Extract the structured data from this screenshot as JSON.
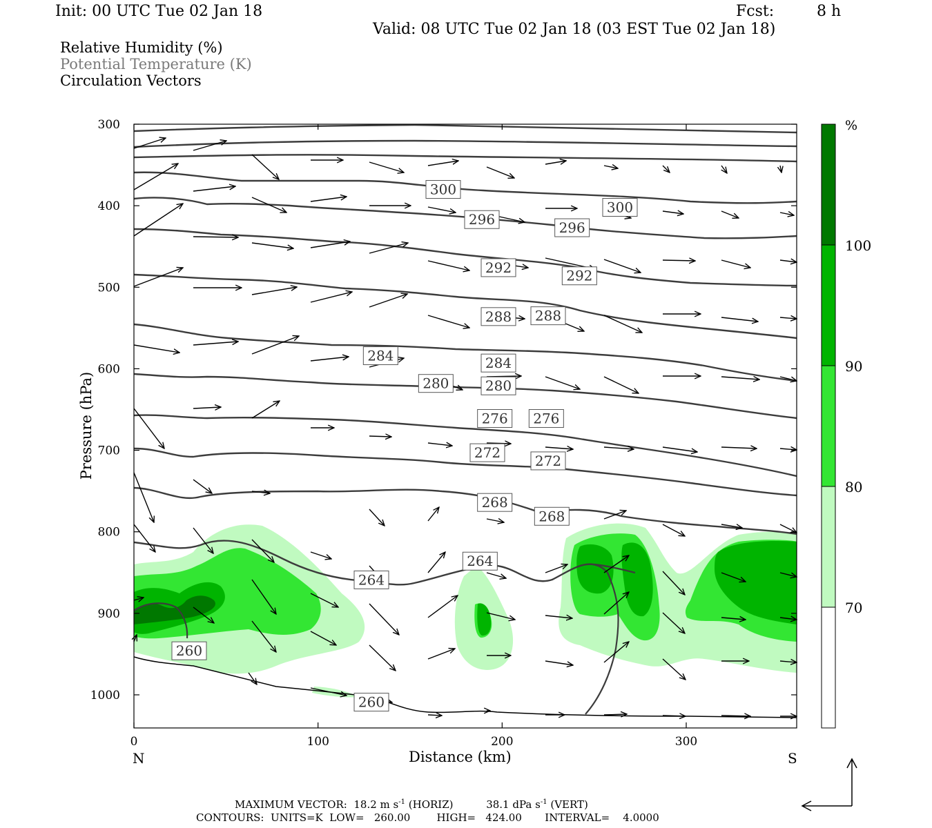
{
  "header": {
    "init": "Init: 00 UTC Tue 02 Jan 18",
    "fcst_label": "Fcst:",
    "fcst_value": "8 h",
    "valid": "Valid: 08 UTC Tue 02 Jan 18 (03 EST Tue 02 Jan 18)"
  },
  "fields": [
    "Relative Humidity (%)",
    "Potential Temperature (K)",
    "Circulation Vectors"
  ],
  "footer": {
    "line1_prefix": "MAXIMUM VECTOR:",
    "horiz": "18.2 m s",
    "horiz_sup": "-1",
    "horiz_suffix": "(HORIZ)",
    "vert": "38.1 dPa s",
    "vert_sup": "-1",
    "vert_suffix": "(VERT)",
    "line2": "CONTOURS:  UNITS=K  LOW=   260.00        HIGH=   424.00       INTERVAL=    4.0000"
  },
  "colors": {
    "rh_70": "#c0fac0",
    "rh_80": "#33e633",
    "rh_90": "#00b400",
    "rh_100": "#007800",
    "theta_line": "#3c3c3c"
  },
  "chart_data": {
    "type": "cross-section",
    "xlabel": "Distance (km)",
    "ylabel": "Pressure (hPa)",
    "xlim": [
      0,
      360
    ],
    "ylim": [
      1040,
      300
    ],
    "x_ticks": [
      0,
      100,
      200,
      300
    ],
    "y_ticks": [
      300,
      400,
      500,
      600,
      700,
      800,
      900,
      1000
    ],
    "x_end_labels": {
      "left": "N",
      "right": "S"
    },
    "colorbar": {
      "unit": "%",
      "levels": [
        70,
        80,
        90,
        100
      ],
      "labels": [
        "100",
        "90",
        "80",
        "70"
      ]
    },
    "theta_labels": [
      {
        "x": 168,
        "p": 380,
        "v": "300"
      },
      {
        "x": 264,
        "p": 402,
        "v": "300"
      },
      {
        "x": 189,
        "p": 417,
        "v": "296"
      },
      {
        "x": 238,
        "p": 427,
        "v": "296"
      },
      {
        "x": 198,
        "p": 476,
        "v": "292"
      },
      {
        "x": 242,
        "p": 486,
        "v": "292"
      },
      {
        "x": 198,
        "p": 536,
        "v": "288"
      },
      {
        "x": 225,
        "p": 535,
        "v": "288"
      },
      {
        "x": 134,
        "p": 584,
        "v": "284"
      },
      {
        "x": 198,
        "p": 593,
        "v": "284"
      },
      {
        "x": 164,
        "p": 618,
        "v": "280"
      },
      {
        "x": 198,
        "p": 621,
        "v": "280"
      },
      {
        "x": 196,
        "p": 661,
        "v": "276"
      },
      {
        "x": 224,
        "p": 661,
        "v": "276"
      },
      {
        "x": 192,
        "p": 703,
        "v": "272"
      },
      {
        "x": 225,
        "p": 713,
        "v": "272"
      },
      {
        "x": 196,
        "p": 764,
        "v": "268"
      },
      {
        "x": 227,
        "p": 781,
        "v": "268"
      },
      {
        "x": 188,
        "p": 836,
        "v": "264"
      },
      {
        "x": 129,
        "p": 859,
        "v": "264"
      },
      {
        "x": 30,
        "p": 946,
        "v": "260"
      },
      {
        "x": 129,
        "p": 1009,
        "v": "260"
      }
    ]
  }
}
